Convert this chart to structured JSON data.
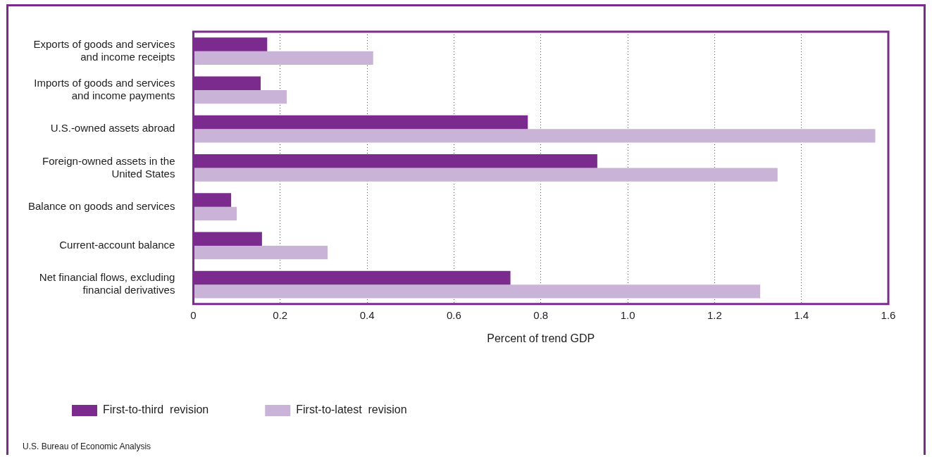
{
  "chart_data": {
    "type": "bar",
    "orientation": "horizontal",
    "xlabel": "Percent of trend GDP",
    "categories": [
      "Exports of goods and services and income receipts",
      "Imports of goods and services and income payments",
      "U.S.-owned assets abroad",
      "Foreign-owned assets in the United States",
      "Balance on goods and services",
      "Current-account balance",
      "Net financial flows, excluding financial derivatives"
    ],
    "series": [
      {
        "name": "First-to-third  revision",
        "color": "#7b2a8e",
        "values": [
          0.17,
          0.155,
          0.77,
          0.93,
          0.087,
          0.158,
          0.73
        ]
      },
      {
        "name": "First-to-latest  revision",
        "color": "#c9b3d6",
        "values": [
          0.414,
          0.215,
          1.57,
          1.345,
          0.1,
          0.309,
          1.305
        ]
      }
    ],
    "xlim": [
      0,
      1.6
    ],
    "xticks": [
      {
        "value": 0,
        "label": "0"
      },
      0.2,
      0.4,
      0.6,
      0.8,
      {
        "value": 1,
        "label": "1.0"
      },
      1.2,
      1.4,
      1.6
    ],
    "grid": "x",
    "legend": "bottom left",
    "annotations": [
      "U.S. Bureau of Economic Analysis"
    ]
  }
}
